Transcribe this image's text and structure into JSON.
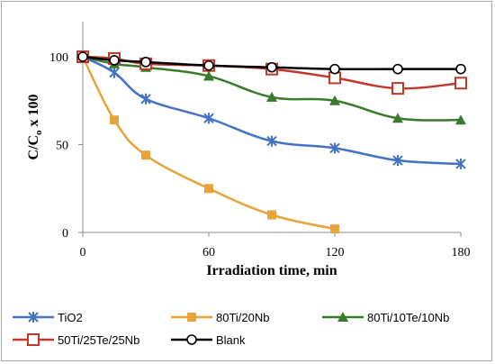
{
  "chart_data": {
    "type": "line",
    "xlabel": "Irradiation time, min",
    "ylabel_main": "C/C",
    "ylabel_sub": "o",
    "ylabel_tail": " x 100",
    "xlim": [
      0,
      180
    ],
    "ylim": [
      0,
      120
    ],
    "x_ticks": [
      "0",
      "60",
      "120",
      "180"
    ],
    "y_ticks": [
      "0",
      "50",
      "100"
    ],
    "grid": false,
    "legend_position": "bottom",
    "series": [
      {
        "name": "TiO2",
        "color": "#4472c4",
        "marker": "star",
        "x": [
          0,
          15,
          30,
          60,
          90,
          120,
          150,
          180
        ],
        "y": [
          100,
          91,
          76,
          65,
          52,
          48,
          41,
          39
        ]
      },
      {
        "name": "80Ti/20Nb",
        "color": "#e8a33a",
        "marker": "square-filled",
        "x": [
          0,
          15,
          30,
          60,
          90,
          120
        ],
        "y": [
          100,
          64,
          44,
          25,
          10,
          2
        ]
      },
      {
        "name": "80Ti/10Te/10Nb",
        "color": "#3a7a2c",
        "marker": "triangle",
        "x": [
          0,
          15,
          30,
          60,
          90,
          120,
          150,
          180
        ],
        "y": [
          100,
          96,
          94,
          89,
          77,
          75,
          65,
          64
        ]
      },
      {
        "name": "50Ti/25Te/25Nb",
        "color": "#c0392b",
        "marker": "square-open",
        "x": [
          0,
          15,
          30,
          60,
          90,
          120,
          150,
          180
        ],
        "y": [
          100,
          99,
          96,
          95,
          93,
          88,
          82,
          85
        ]
      },
      {
        "name": "Blank",
        "color": "#000000",
        "marker": "circle-open",
        "x": [
          0,
          15,
          30,
          60,
          90,
          120,
          150,
          180
        ],
        "y": [
          100,
          98,
          97,
          95,
          94,
          93,
          93,
          93
        ]
      }
    ]
  }
}
